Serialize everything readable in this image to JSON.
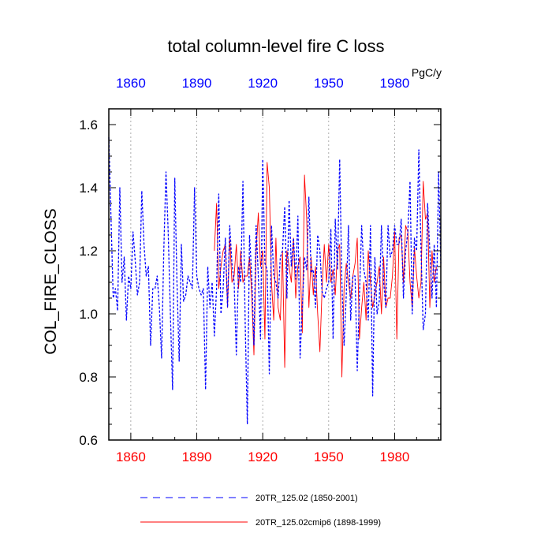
{
  "chart_data": {
    "type": "line",
    "title": "total column-level fire C loss",
    "units": "PgC/y",
    "xlabel": "",
    "ylabel": "COL_FIRE_CLOSS",
    "xlim": [
      1850,
      2001
    ],
    "ylim": [
      0.6,
      1.65
    ],
    "x_ticks": [
      1860,
      1890,
      1920,
      1950,
      1980
    ],
    "y_ticks": [
      0.6,
      0.8,
      1.0,
      1.2,
      1.4,
      1.6
    ],
    "y_tick_labels": [
      "0.6",
      "0.8",
      "1.0",
      "1.2",
      "1.4",
      "1.6"
    ],
    "grid": "vertical dotted at x ticks",
    "top_axis_color": "#0000ff",
    "bottom_axis_color": "#ff0000",
    "series": [
      {
        "name": "20TR_125.02 (1850-2001)",
        "color": "#0000ff",
        "style": "dashed",
        "start_year": 1850,
        "values": [
          1.56,
          1.3,
          1.05,
          1.08,
          1.01,
          1.4,
          1.1,
          1.18,
          0.98,
          1.12,
          1.08,
          1.26,
          1.17,
          1.06,
          1.1,
          1.39,
          1.22,
          1.12,
          1.15,
          0.9,
          1.08,
          1.08,
          1.12,
          1.02,
          0.86,
          1.2,
          1.45,
          1.26,
          1.0,
          0.76,
          1.43,
          1.1,
          0.85,
          1.22,
          1.04,
          1.06,
          1.12,
          1.1,
          1.08,
          1.4,
          1.12,
          1.08,
          1.06,
          1.08,
          0.76,
          1.15,
          1.02,
          1.1,
          0.93,
          1.08,
          1.38,
          1.0,
          1.08,
          1.24,
          1.02,
          1.28,
          1.16,
          1.1,
          0.87,
          1.15,
          1.1,
          1.42,
          0.98,
          0.65,
          1.25,
          1.12,
          0.9,
          1.28,
          1.12,
          0.92,
          1.49,
          1.16,
          1.14,
          0.81,
          1.28,
          1.12,
          1.1,
          1.05,
          1.18,
          1.2,
          1.34,
          1.05,
          1.36,
          1.15,
          1.24,
          1.11,
          1.31,
          0.86,
          1.02,
          1.18,
          1.14,
          1.37,
          1.13,
          1.14,
          1.02,
          1.25,
          1.2,
          1.07,
          1.05,
          1.08,
          1.1,
          1.27,
          0.92,
          1.3,
          1.14,
          1.49,
          1.1,
          0.9,
          1.06,
          1.28,
          0.98,
          1.12,
          1.12,
          0.82,
          1.06,
          1.28,
          1.14,
          1.1,
          0.98,
          1.28,
          0.74,
          1.18,
          1.0,
          1.04,
          1.28,
          1.1,
          1.02,
          1.28,
          1.18,
          1.2,
          1.28,
          1.22,
          1.22,
          1.3,
          1.05,
          1.2,
          1.26,
          1.42,
          1.0,
          1.24,
          1.2,
          1.52,
          1.2,
          0.95,
          1.0,
          1.35,
          1.2,
          1.05,
          1.22,
          1.02,
          1.45,
          1.16
        ]
      },
      {
        "name": "20TR_125.02cmip6 (1898-1999)",
        "color": "#ff0000",
        "style": "solid",
        "start_year": 1898,
        "values": [
          1.2,
          1.35,
          1.08,
          1.15,
          1.2,
          1.22,
          1.02,
          1.24,
          1.1,
          1.12,
          1.22,
          1.08,
          1.2,
          1.1,
          1.12,
          1.12,
          1.18,
          1.06,
          0.87,
          1.2,
          1.32,
          1.15,
          1.2,
          0.92,
          1.48,
          1.4,
          1.1,
          0.98,
          1.24,
          1.02,
          0.98,
          1.2,
          0.83,
          1.2,
          1.15,
          1.1,
          1.24,
          1.05,
          1.15,
          1.18,
          0.94,
          1.44,
          1.3,
          1.02,
          1.18,
          1.06,
          1.15,
          1.0,
          0.88,
          1.08,
          1.22,
          1.1,
          1.22,
          1.1,
          1.14,
          1.06,
          1.2,
          1.22,
          0.8,
          1.08,
          1.16,
          1.1,
          1.05,
          1.12,
          1.16,
          1.24,
          0.92,
          1.02,
          1.1,
          0.98,
          1.2,
          1.1,
          1.02,
          1.06,
          1.1,
          1.15,
          1.0,
          1.18,
          1.02,
          1.05,
          1.05,
          1.12,
          1.26,
          0.92,
          1.24,
          1.25,
          1.1,
          1.28,
          1.26,
          1.1,
          1.02,
          1.21,
          1.12,
          1.05,
          1.1,
          1.42,
          1.3,
          1.32,
          1.02,
          1.2,
          1.1,
          1.15
        ]
      }
    ]
  }
}
